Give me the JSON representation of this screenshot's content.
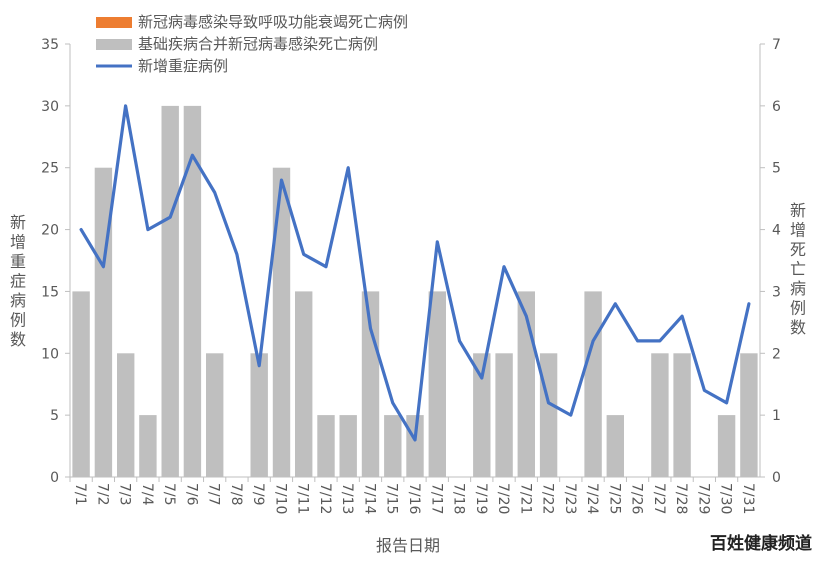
{
  "chart_data": {
    "type": "bar",
    "categories": [
      "7/1",
      "7/2",
      "7/3",
      "7/4",
      "7/5",
      "7/6",
      "7/7",
      "7/8",
      "7/9",
      "7/10",
      "7/11",
      "7/12",
      "7/13",
      "7/14",
      "7/15",
      "7/16",
      "7/17",
      "7/18",
      "7/19",
      "7/20",
      "7/21",
      "7/22",
      "7/23",
      "7/24",
      "7/25",
      "7/26",
      "7/27",
      "7/28",
      "7/29",
      "7/30",
      "7/31"
    ],
    "series": [
      {
        "name": "新冠病毒感染导致呼吸功能衰竭死亡病例",
        "type": "bar",
        "axis": "right",
        "color": "#ED7D31",
        "values": [
          0,
          0,
          0,
          0,
          0,
          0,
          0,
          0,
          0,
          0,
          0,
          0,
          0,
          0,
          0,
          0,
          0,
          0,
          0,
          0,
          0,
          0,
          0,
          0,
          0,
          0,
          0,
          0,
          0,
          0,
          0
        ]
      },
      {
        "name": "基础疾病合并新冠病毒感染死亡病例",
        "type": "bar",
        "axis": "right",
        "color": "#BFBFBF",
        "values": [
          3,
          5,
          2,
          1,
          6,
          6,
          2,
          0,
          2,
          5,
          3,
          1,
          1,
          3,
          1,
          1,
          3,
          0,
          2,
          2,
          3,
          2,
          0,
          3,
          1,
          0,
          2,
          2,
          0,
          1,
          2
        ]
      },
      {
        "name": "新增重症病例",
        "type": "line",
        "axis": "left",
        "color": "#4472C4",
        "values": [
          20,
          17,
          30,
          20,
          21,
          26,
          23,
          18,
          9,
          24,
          18,
          17,
          25,
          12,
          6,
          3,
          19,
          11,
          8,
          17,
          13,
          6,
          5,
          11,
          14,
          11,
          11,
          13,
          7,
          6,
          14
        ]
      }
    ],
    "xlabel": "报告日期",
    "ylabel": "新增重症病例数",
    "y2label": "新增死亡病例数",
    "ylim": [
      0,
      35
    ],
    "y2lim": [
      0,
      7
    ],
    "yticks": [
      "0",
      "5",
      "10",
      "15",
      "20",
      "25",
      "30",
      "35"
    ],
    "y2ticks": [
      "0",
      "1",
      "2",
      "3",
      "4",
      "5",
      "6",
      "7"
    ],
    "grid": false,
    "legend_position": "top-left"
  },
  "watermark": "百姓健康频道"
}
